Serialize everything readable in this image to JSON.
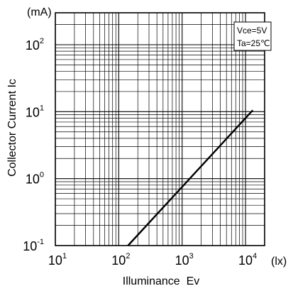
{
  "chart_data": {
    "type": "line",
    "xscale": "log",
    "yscale": "log",
    "xlim": [
      10,
      20000
    ],
    "ylim": [
      0.1,
      300
    ],
    "xlabel": "Illuminance  Ev",
    "ylabel": "Collector Current Ic",
    "x_unit": "(lx)",
    "y_unit": "(mA)",
    "x_ticks": [
      {
        "value": 10,
        "base": "10",
        "exp": "1"
      },
      {
        "value": 100,
        "base": "10",
        "exp": "2"
      },
      {
        "value": 1000,
        "base": "10",
        "exp": "3"
      },
      {
        "value": 10000,
        "base": "10",
        "exp": "4"
      }
    ],
    "y_ticks": [
      {
        "value": 0.1,
        "base": "10",
        "exp": "-1"
      },
      {
        "value": 1,
        "base": "10",
        "exp": "0"
      },
      {
        "value": 10,
        "base": "10",
        "exp": "1"
      },
      {
        "value": 100,
        "base": "10",
        "exp": "2"
      }
    ],
    "annotations": [
      "Vce=5V",
      "Ta=25℃"
    ],
    "grid": true,
    "series": [
      {
        "x": [
          140,
          13000
        ],
        "y": [
          0.1,
          10.5
        ]
      }
    ]
  }
}
